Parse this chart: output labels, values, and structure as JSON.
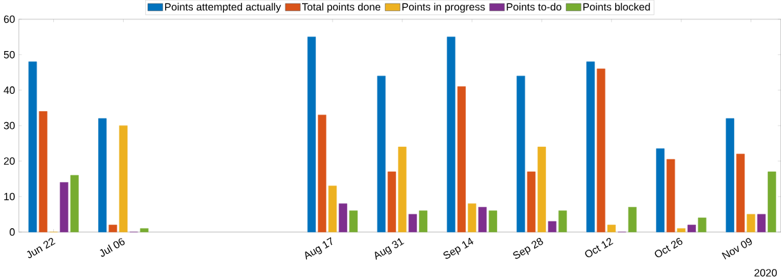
{
  "chart_data": {
    "type": "bar",
    "x": [
      "2020-06-22",
      "2020-07-06",
      "2020-08-17",
      "2020-08-31",
      "2020-09-14",
      "2020-09-28",
      "2020-10-12",
      "2020-10-26",
      "2020-11-09"
    ],
    "series": [
      {
        "name": "Points attempted actually",
        "color": "#0072bd",
        "values": [
          48,
          32,
          55,
          44,
          55,
          44,
          48,
          23.5,
          32
        ]
      },
      {
        "name": "Total points done",
        "color": "#d95319",
        "values": [
          34,
          2,
          33,
          17,
          41,
          17,
          46,
          20.5,
          22
        ]
      },
      {
        "name": "Points in progress",
        "color": "#edb120",
        "values": [
          0,
          30,
          13,
          24,
          8,
          24,
          2,
          1,
          5
        ]
      },
      {
        "name": "Points to-do",
        "color": "#7e2f8e",
        "values": [
          14,
          0,
          8,
          5,
          7,
          3,
          0,
          2,
          5
        ]
      },
      {
        "name": "Points blocked",
        "color": "#77ac30",
        "values": [
          16,
          1,
          6,
          6,
          6,
          6,
          7,
          4,
          17
        ]
      }
    ],
    "xlim": [
      "2020-06-15",
      "2020-11-15"
    ],
    "xticks": [
      {
        "value": "2020-06-22",
        "label": "Jun 22"
      },
      {
        "value": "2020-07-06",
        "label": "Jul 06"
      },
      {
        "value": "2020-08-17",
        "label": "Aug 17"
      },
      {
        "value": "2020-08-31",
        "label": "Aug 31"
      },
      {
        "value": "2020-09-14",
        "label": "Sep 14"
      },
      {
        "value": "2020-09-28",
        "label": "Sep 28"
      },
      {
        "value": "2020-10-12",
        "label": "Oct 12"
      },
      {
        "value": "2020-10-26",
        "label": "Oct 26"
      },
      {
        "value": "2020-11-09",
        "label": "Nov 09"
      }
    ],
    "ylim": [
      0,
      60
    ],
    "yticks": [
      0,
      10,
      20,
      30,
      40,
      50,
      60
    ],
    "annotations": [
      "2020"
    ],
    "legend": "top",
    "grid": false
  }
}
